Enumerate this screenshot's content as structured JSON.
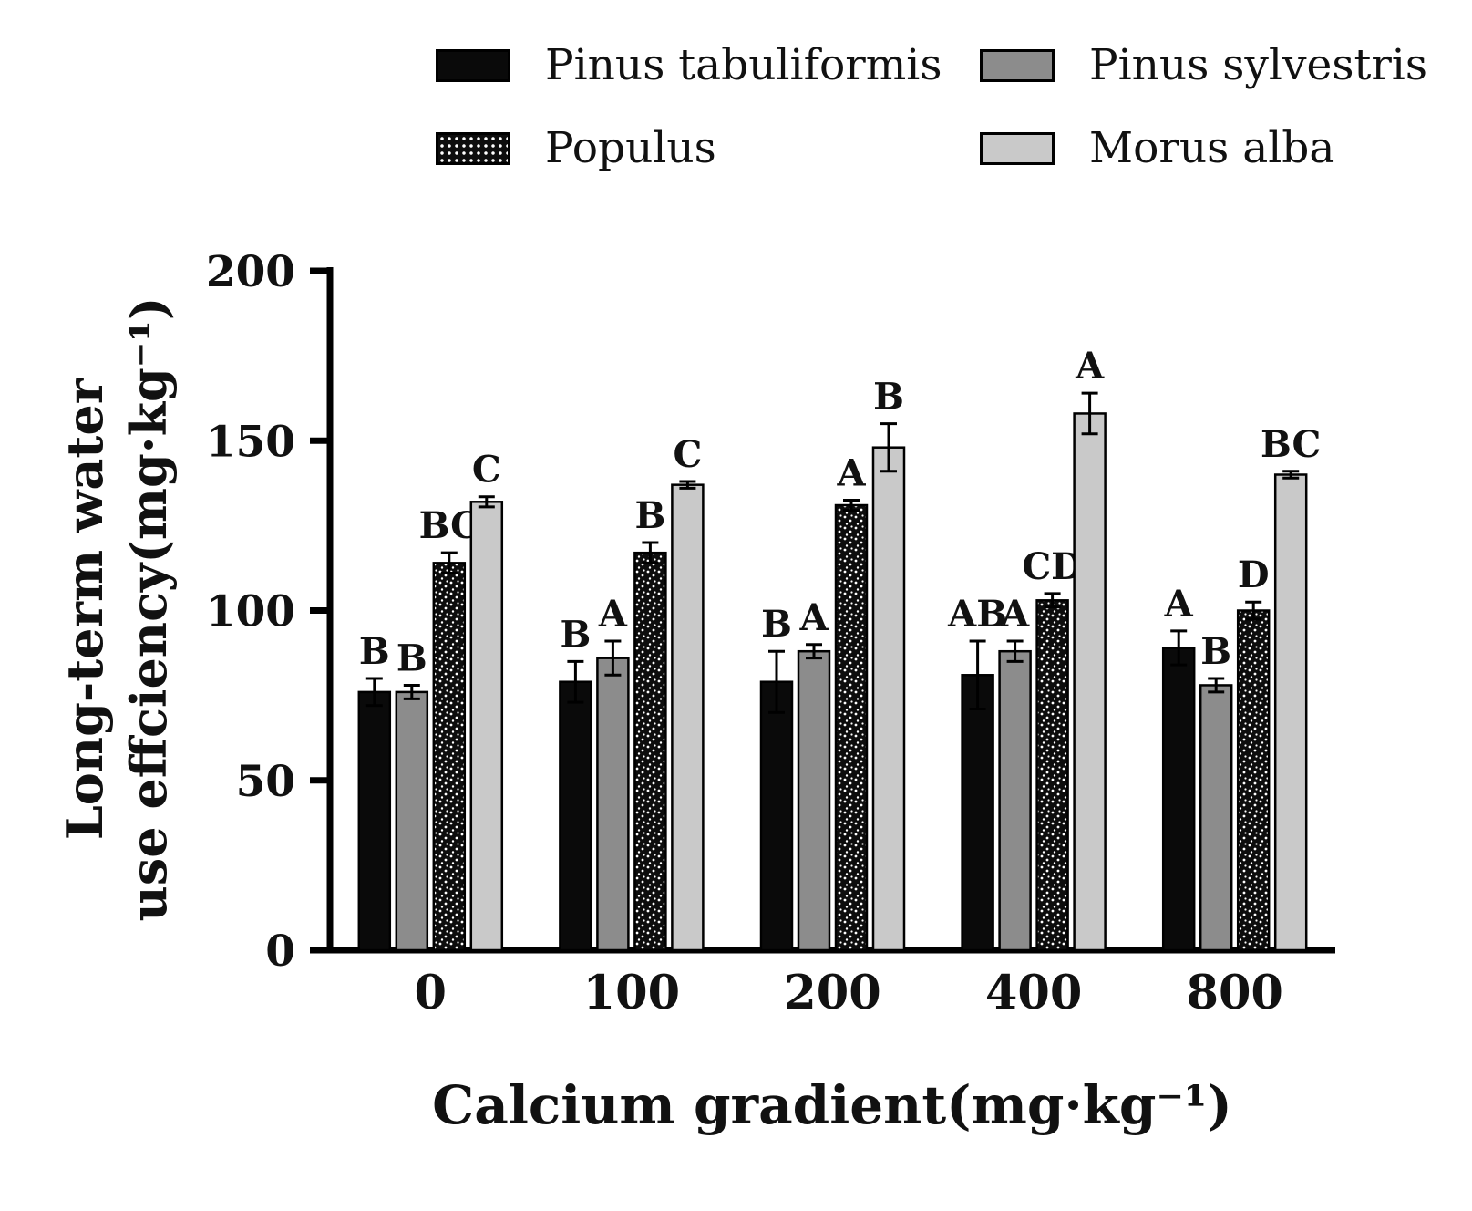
{
  "figure": {
    "background": "#ffffff",
    "text_color": "#111111",
    "axis_color": "#000000"
  },
  "chart_data": {
    "type": "bar",
    "title": "",
    "xlabel": "Calcium gradient(mg·kg⁻¹)",
    "ylabel_line1": "Long-term water",
    "ylabel_line2": "use effciency(mg·kg⁻¹)",
    "categories": [
      "0",
      "100",
      "200",
      "400",
      "800"
    ],
    "ylim": [
      0,
      200
    ],
    "yticks": [
      0,
      50,
      100,
      150,
      200
    ],
    "grid": false,
    "legend_position": "top",
    "error_bars": true,
    "series": [
      {
        "name": "Pinus tabuliformis",
        "fill": "#0a0a0a",
        "pattern": false,
        "values": [
          76,
          79,
          79,
          81,
          89
        ],
        "errors": [
          4,
          6,
          9,
          10,
          5
        ],
        "labels": [
          "B",
          "B",
          "B",
          "AB",
          "A"
        ]
      },
      {
        "name": "Pinus sylvestris",
        "fill": "#8c8c8c",
        "pattern": false,
        "values": [
          76,
          86,
          88,
          88,
          78
        ],
        "errors": [
          2,
          5,
          2,
          3,
          2
        ],
        "labels": [
          "B",
          "A",
          "A",
          "A",
          "B"
        ]
      },
      {
        "name": "Populus",
        "fill": "#0d0d0d",
        "pattern": true,
        "values": [
          114,
          117,
          131,
          103,
          100
        ],
        "errors": [
          3,
          3,
          1.5,
          2,
          2.5
        ],
        "labels": [
          "BC",
          "B",
          "A",
          "CD",
          "D"
        ]
      },
      {
        "name": "Morus alba",
        "fill": "#c9c9c9",
        "pattern": false,
        "values": [
          132,
          137,
          148,
          158,
          140
        ],
        "errors": [
          1.5,
          1,
          7,
          6,
          1
        ],
        "labels": [
          "C",
          "C",
          "B",
          "A",
          "BC"
        ]
      }
    ]
  }
}
